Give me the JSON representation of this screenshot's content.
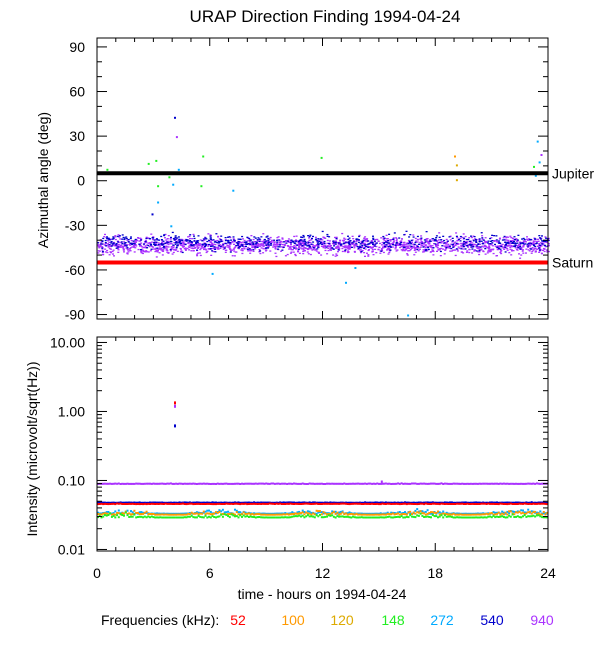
{
  "title": "URAP Direction Finding  1994-04-24",
  "xlabel": "time - hours on 1994-04-24",
  "x_ticks": [
    "0",
    "6",
    "12",
    "18",
    "24"
  ],
  "legend": {
    "label": "Frequencies (kHz):",
    "items": [
      {
        "name": "52",
        "color": "#ff0000"
      },
      {
        "name": "100",
        "color": "#ff9900"
      },
      {
        "name": "120",
        "color": "#ddaa00"
      },
      {
        "name": "148",
        "color": "#22ee22"
      },
      {
        "name": "272",
        "color": "#00aaff"
      },
      {
        "name": "540",
        "color": "#0000cc"
      },
      {
        "name": "940",
        "color": "#aa33ff"
      }
    ]
  },
  "chart_data": [
    {
      "type": "scatter",
      "ylabel": "Azimuthal angle (deg)",
      "xlim": [
        0,
        24
      ],
      "ylim": [
        -93,
        96
      ],
      "y_ticks": [
        "90",
        "60",
        "30",
        "0",
        "-30",
        "-60",
        "-90"
      ],
      "reference_lines": [
        {
          "name": "Jupiter",
          "y": 5,
          "x_start": 0,
          "x_end": 24,
          "color": "#000000"
        },
        {
          "name": "Saturn",
          "y": -55,
          "x_start": 0,
          "x_end": 24,
          "color": "#ff0000"
        }
      ],
      "bands": [
        {
          "frequency": "940",
          "center": -43,
          "spread": 10,
          "color": "#aa33ff"
        },
        {
          "frequency": "540",
          "center": -41,
          "spread": 9,
          "color": "#0000cc"
        }
      ],
      "outliers": [
        {
          "x": 0.5,
          "y": 8,
          "frequency": "148"
        },
        {
          "x": 2.7,
          "y": 12,
          "frequency": "148"
        },
        {
          "x": 3.1,
          "y": 14,
          "frequency": "148"
        },
        {
          "x": 3.2,
          "y": -3,
          "frequency": "148"
        },
        {
          "x": 3.8,
          "y": 3,
          "frequency": "148"
        },
        {
          "x": 4.1,
          "y": 43,
          "frequency": "540"
        },
        {
          "x": 4.2,
          "y": 30,
          "frequency": "940"
        },
        {
          "x": 4.3,
          "y": 8,
          "frequency": "272"
        },
        {
          "x": 4.0,
          "y": -2,
          "frequency": "272"
        },
        {
          "x": 3.9,
          "y": -30,
          "frequency": "272"
        },
        {
          "x": 2.9,
          "y": -22,
          "frequency": "540"
        },
        {
          "x": 3.2,
          "y": -14,
          "frequency": "272"
        },
        {
          "x": 5.5,
          "y": -3,
          "frequency": "148"
        },
        {
          "x": 5.6,
          "y": 17,
          "frequency": "148"
        },
        {
          "x": 6.1,
          "y": -62,
          "frequency": "272"
        },
        {
          "x": 7.2,
          "y": -6,
          "frequency": "272"
        },
        {
          "x": 11.9,
          "y": 16,
          "frequency": "148"
        },
        {
          "x": 12.0,
          "y": -55,
          "frequency": "272"
        },
        {
          "x": 13.2,
          "y": -68,
          "frequency": "272"
        },
        {
          "x": 13.7,
          "y": -58,
          "frequency": "272"
        },
        {
          "x": 16.5,
          "y": -90,
          "frequency": "272"
        },
        {
          "x": 19.0,
          "y": 17,
          "frequency": "100"
        },
        {
          "x": 19.1,
          "y": 11,
          "frequency": "120"
        },
        {
          "x": 19.1,
          "y": 1,
          "frequency": "120"
        },
        {
          "x": 23.2,
          "y": 10,
          "frequency": "148"
        },
        {
          "x": 23.3,
          "y": 4,
          "frequency": "272"
        },
        {
          "x": 23.4,
          "y": 27,
          "frequency": "272"
        },
        {
          "x": 23.5,
          "y": 13,
          "frequency": "272"
        },
        {
          "x": 23.6,
          "y": 18,
          "frequency": "940"
        }
      ]
    },
    {
      "type": "scatter",
      "ylabel": "Intensity (microvolt/sqrt(Hz))",
      "xlim": [
        0,
        24
      ],
      "ylim": [
        0.0095,
        12
      ],
      "y_scale": "log",
      "y_ticks": [
        "10.00",
        "1.00",
        "0.10",
        "0.01"
      ],
      "levels": [
        {
          "frequency": "940",
          "value": 0.092,
          "color": "#aa33ff"
        },
        {
          "frequency": "540",
          "value": 0.049,
          "color": "#0000cc"
        },
        {
          "frequency": "52",
          "value": 0.047,
          "color": "#ff0000"
        },
        {
          "frequency": "272",
          "value": 0.034,
          "color": "#00aaff"
        },
        {
          "frequency": "100",
          "value": 0.033,
          "color": "#ff9900"
        },
        {
          "frequency": "148",
          "value": 0.03,
          "color": "#22ee22"
        }
      ],
      "outliers": [
        {
          "x": 4.1,
          "y": 1.4,
          "frequency": "52"
        },
        {
          "x": 4.1,
          "y": 1.25,
          "frequency": "940"
        },
        {
          "x": 4.1,
          "y": 0.65,
          "frequency": "540"
        },
        {
          "x": 15.1,
          "y": 0.1,
          "frequency": "940"
        }
      ]
    }
  ]
}
